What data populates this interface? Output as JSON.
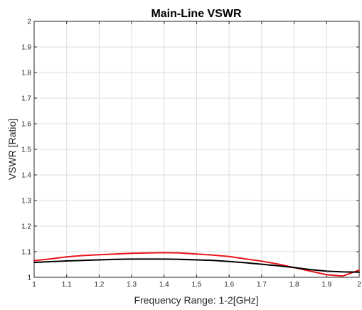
{
  "chart_data": {
    "type": "line",
    "title": "Main-Line VSWR",
    "xlabel": "Frequency Range: 1-2[GHz]",
    "ylabel": "VSWR [Ratio]",
    "xlim": [
      1,
      2
    ],
    "ylim": [
      1,
      2
    ],
    "x_ticks": [
      1,
      1.1,
      1.2,
      1.3,
      1.4,
      1.5,
      1.6,
      1.7,
      1.8,
      1.9,
      2
    ],
    "x_tick_labels": [
      "1",
      "1.1",
      "1.2",
      "1.3",
      "1.4",
      "1.5",
      "1.6",
      "1.7",
      "1.8",
      "1.9",
      "2"
    ],
    "y_ticks": [
      1,
      1.1,
      1.2,
      1.3,
      1.4,
      1.5,
      1.6,
      1.7,
      1.8,
      1.9,
      2
    ],
    "y_tick_labels": [
      "1",
      "1.1",
      "1.2",
      "1.3",
      "1.4",
      "1.5",
      "1.6",
      "1.7",
      "1.8",
      "1.9",
      "2"
    ],
    "grid": true,
    "series": [
      {
        "color": "#e8151b",
        "x": [
          1.0,
          1.05,
          1.1,
          1.15,
          1.2,
          1.25,
          1.3,
          1.35,
          1.4,
          1.45,
          1.5,
          1.55,
          1.6,
          1.65,
          1.7,
          1.75,
          1.8,
          1.85,
          1.9,
          1.95,
          2.0
        ],
        "values": [
          1.065,
          1.072,
          1.08,
          1.085,
          1.088,
          1.091,
          1.094,
          1.095,
          1.096,
          1.095,
          1.091,
          1.087,
          1.081,
          1.072,
          1.063,
          1.052,
          1.038,
          1.024,
          1.01,
          1.005,
          1.028
        ]
      },
      {
        "color": "#000000",
        "x": [
          1.0,
          1.05,
          1.1,
          1.15,
          1.2,
          1.25,
          1.3,
          1.35,
          1.4,
          1.45,
          1.5,
          1.55,
          1.6,
          1.65,
          1.7,
          1.75,
          1.8,
          1.85,
          1.9,
          1.95,
          2.0
        ],
        "values": [
          1.058,
          1.061,
          1.064,
          1.066,
          1.068,
          1.07,
          1.071,
          1.071,
          1.071,
          1.07,
          1.068,
          1.066,
          1.062,
          1.057,
          1.051,
          1.045,
          1.038,
          1.03,
          1.024,
          1.021,
          1.02
        ]
      }
    ]
  }
}
